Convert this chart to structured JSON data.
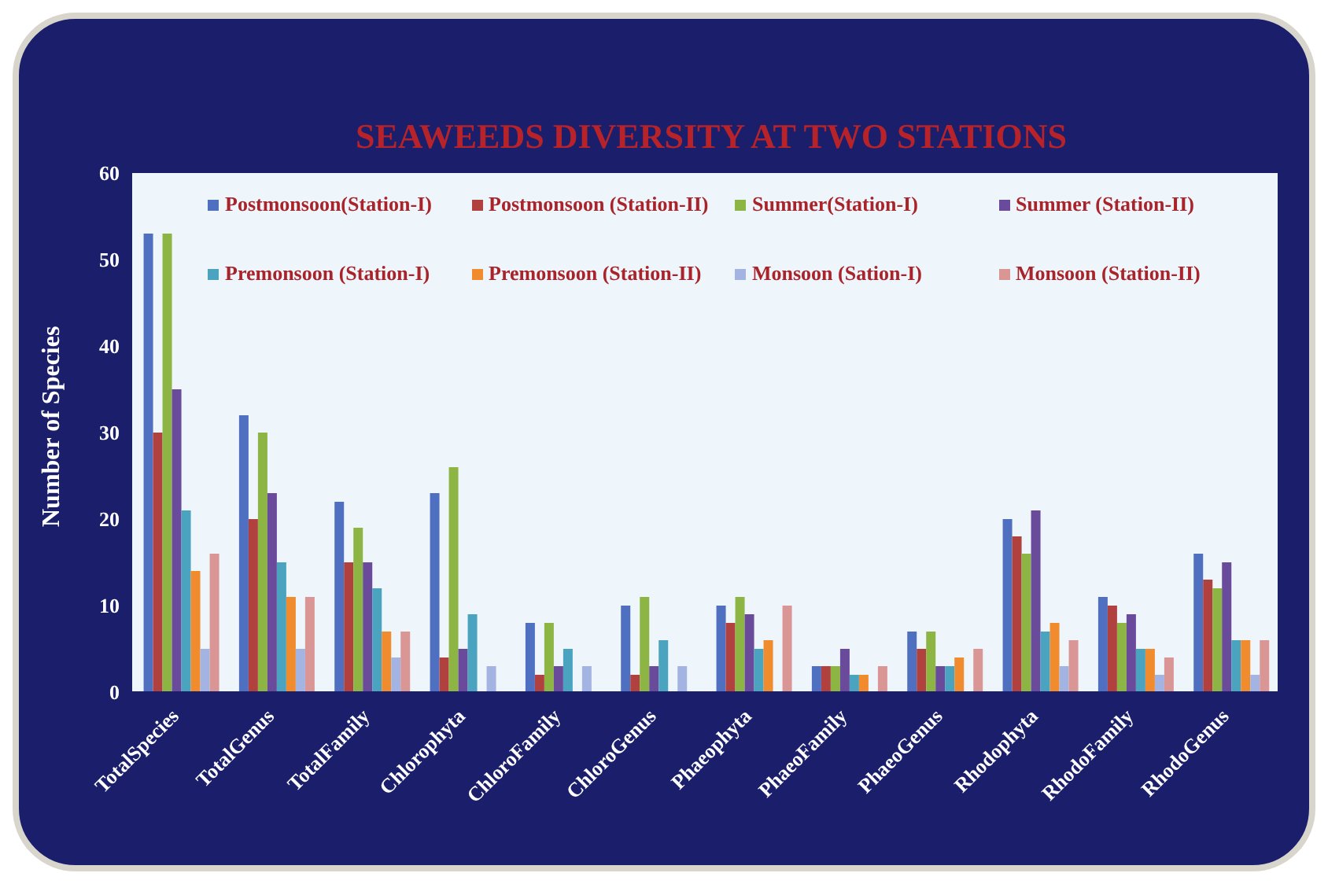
{
  "chart_data": {
    "type": "bar",
    "title": "SEAWEEDS DIVERSITY AT TWO STATIONS",
    "ylabel": "Number of Species",
    "categories": [
      "TotalSpecies",
      "TotalGenus",
      "TotalFamily",
      "Chlorophyta",
      "ChloroFamily",
      "ChloroGenus",
      "Phaeophyta",
      "PhaeoFamily",
      "PhaeoGenus",
      "Rhodophyta",
      "RhodoFamily",
      "RhodoGenus"
    ],
    "series": [
      {
        "name": "Postmonsoon(Station-I)",
        "color": "#4f6fc0",
        "values": [
          53,
          32,
          22,
          23,
          8,
          10,
          10,
          3,
          7,
          20,
          11,
          16
        ]
      },
      {
        "name": "Postmonsoon (Station-II)",
        "color": "#b0413e",
        "values": [
          30,
          20,
          15,
          4,
          2,
          2,
          8,
          3,
          5,
          18,
          10,
          13
        ]
      },
      {
        "name": "Summer(Station-I)",
        "color": "#8db543",
        "values": [
          53,
          30,
          19,
          26,
          8,
          11,
          11,
          3,
          7,
          16,
          8,
          12
        ]
      },
      {
        "name": "Summer (Station-II)",
        "color": "#6a4a9a",
        "values": [
          35,
          23,
          15,
          5,
          3,
          3,
          9,
          5,
          3,
          21,
          9,
          15
        ]
      },
      {
        "name": "Premonsoon (Station-I)",
        "color": "#4aa3bf",
        "values": [
          21,
          15,
          12,
          9,
          5,
          6,
          5,
          2,
          3,
          7,
          5,
          6
        ]
      },
      {
        "name": "Premonsoon (Station-II)",
        "color": "#f08c2e",
        "values": [
          14,
          11,
          7,
          0,
          0,
          0,
          6,
          2,
          4,
          8,
          5,
          6
        ]
      },
      {
        "name": "Monsoon (Sation-I)",
        "color": "#a4b4e2",
        "values": [
          5,
          5,
          4,
          3,
          3,
          3,
          0,
          0,
          0,
          3,
          2,
          2
        ]
      },
      {
        "name": "Monsoon (Station-II)",
        "color": "#d99694",
        "values": [
          16,
          11,
          7,
          0,
          0,
          0,
          10,
          3,
          5,
          6,
          4,
          6
        ]
      }
    ],
    "ylim": [
      0,
      60
    ],
    "yticks": [
      0,
      10,
      20,
      30,
      40,
      50,
      60
    ],
    "legend": "top"
  }
}
